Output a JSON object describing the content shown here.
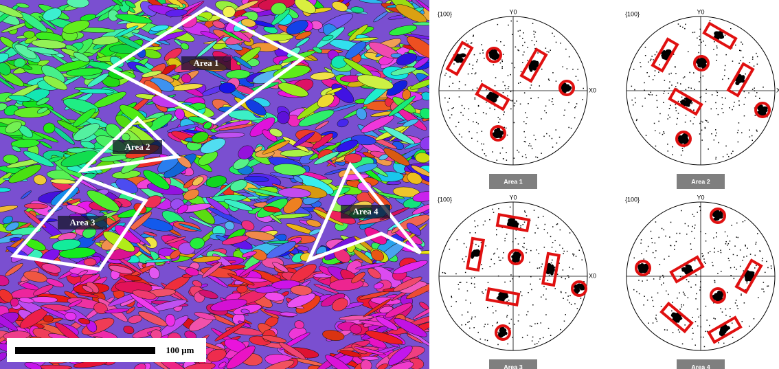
{
  "map": {
    "area_labels": [
      "Area 1",
      "Area 2",
      "Area 3",
      "Area 4"
    ],
    "scale_bar": "100 μm"
  },
  "pole_figures": [
    {
      "plane": "{100}",
      "y_axis": "Y0",
      "x_axis": "X0",
      "caption": "Area 1"
    },
    {
      "plane": "{100}",
      "y_axis": "Y0",
      "x_axis": "X",
      "caption": "Area 2"
    },
    {
      "plane": "{100}",
      "y_axis": "Y0",
      "x_axis": "X0",
      "caption": "Area 3"
    },
    {
      "plane": "{100}",
      "y_axis": "Y0",
      "caption": "Area 4"
    }
  ]
}
